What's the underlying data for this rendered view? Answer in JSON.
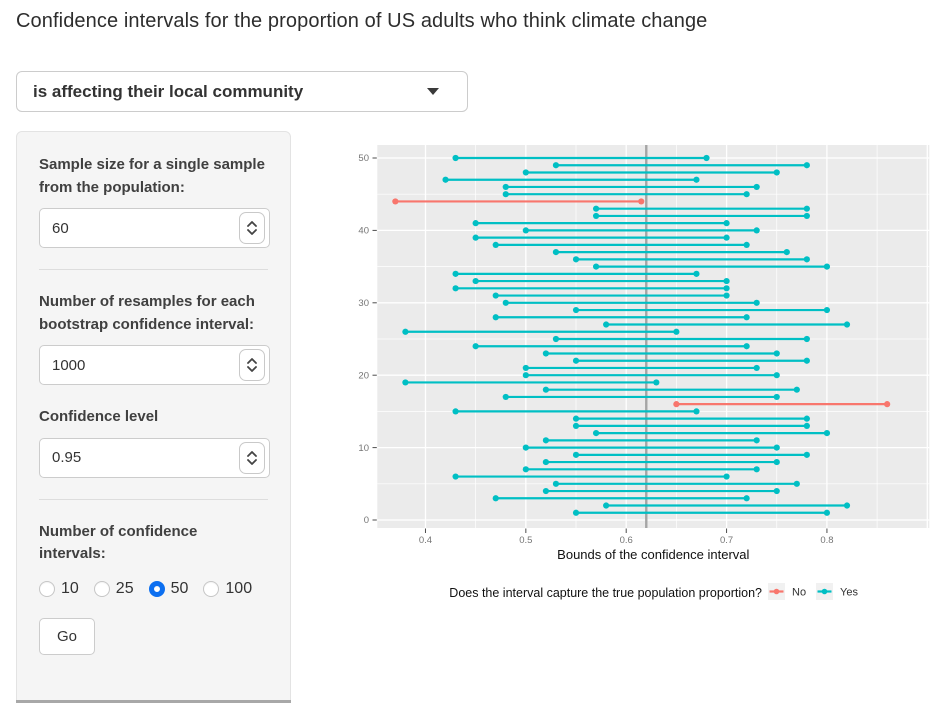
{
  "title": "Confidence intervals for the proportion of US adults who think climate change",
  "topic_select": {
    "value": "is affecting their local community"
  },
  "sidebar": {
    "sample_size_label": "Sample size for a single sample from the population:",
    "sample_size_value": "60",
    "resamples_label": "Number of resamples for each bootstrap confidence interval:",
    "resamples_value": "1000",
    "conf_level_label": "Confidence level",
    "conf_level_value": "0.95",
    "num_intervals_label": "Number of confidence intervals:",
    "num_intervals_options": [
      {
        "label": "10",
        "selected": false
      },
      {
        "label": "25",
        "selected": false
      },
      {
        "label": "50",
        "selected": true
      },
      {
        "label": "100",
        "selected": false
      }
    ],
    "go_label": "Go"
  },
  "chart_data": {
    "type": "scatter",
    "mark": "confidence-interval-segments",
    "title": "",
    "xlabel": "Bounds of the confidence interval",
    "ylabel": "",
    "xlim": [
      0.352,
      0.902
    ],
    "ylim": [
      -1.5,
      52
    ],
    "x_ticks": [
      0.4,
      0.5,
      0.6,
      0.7,
      0.8
    ],
    "x_gridlines": [
      0.4,
      0.5,
      0.6,
      0.7,
      0.8,
      0.9
    ],
    "x_minor_gridlines": [
      0.45,
      0.55,
      0.65,
      0.75,
      0.85
    ],
    "y_ticks": [
      0,
      10,
      20,
      30,
      40,
      50
    ],
    "y_minor_gridlines": [
      5,
      15,
      25,
      35,
      45
    ],
    "true_proportion_line": 0.62,
    "grid": true,
    "legend": {
      "position": "bottom",
      "title": "Does the interval capture the true population proportion?",
      "entries": [
        {
          "key": "no",
          "label": "No",
          "color": "#F8766D"
        },
        {
          "key": "yes",
          "label": "Yes",
          "color": "#00BFC4"
        }
      ]
    },
    "colors": {
      "panel": "#EBEBEB",
      "grid": "#FFFFFF",
      "vline": "#A5A5A5",
      "tick": "#4d4d4d",
      "axis_text": "#757575",
      "axis_title": "#111111",
      "key_bg": "#F1F1F1"
    },
    "intervals": [
      {
        "y": 1,
        "lo": 0.55,
        "hi": 0.8,
        "capture": "yes"
      },
      {
        "y": 2,
        "lo": 0.58,
        "hi": 0.82,
        "capture": "yes"
      },
      {
        "y": 3,
        "lo": 0.47,
        "hi": 0.72,
        "capture": "yes"
      },
      {
        "y": 4,
        "lo": 0.52,
        "hi": 0.75,
        "capture": "yes"
      },
      {
        "y": 5,
        "lo": 0.53,
        "hi": 0.77,
        "capture": "yes"
      },
      {
        "y": 6,
        "lo": 0.43,
        "hi": 0.7,
        "capture": "yes"
      },
      {
        "y": 7,
        "lo": 0.5,
        "hi": 0.73,
        "capture": "yes"
      },
      {
        "y": 8,
        "lo": 0.52,
        "hi": 0.75,
        "capture": "yes"
      },
      {
        "y": 9,
        "lo": 0.55,
        "hi": 0.78,
        "capture": "yes"
      },
      {
        "y": 10,
        "lo": 0.5,
        "hi": 0.75,
        "capture": "yes"
      },
      {
        "y": 11,
        "lo": 0.52,
        "hi": 0.73,
        "capture": "yes"
      },
      {
        "y": 12,
        "lo": 0.57,
        "hi": 0.8,
        "capture": "yes"
      },
      {
        "y": 13,
        "lo": 0.55,
        "hi": 0.78,
        "capture": "yes"
      },
      {
        "y": 14,
        "lo": 0.55,
        "hi": 0.78,
        "capture": "yes"
      },
      {
        "y": 15,
        "lo": 0.43,
        "hi": 0.67,
        "capture": "yes"
      },
      {
        "y": 16,
        "lo": 0.65,
        "hi": 0.86,
        "capture": "no"
      },
      {
        "y": 17,
        "lo": 0.48,
        "hi": 0.75,
        "capture": "yes"
      },
      {
        "y": 18,
        "lo": 0.52,
        "hi": 0.77,
        "capture": "yes"
      },
      {
        "y": 19,
        "lo": 0.38,
        "hi": 0.63,
        "capture": "yes"
      },
      {
        "y": 20,
        "lo": 0.5,
        "hi": 0.75,
        "capture": "yes"
      },
      {
        "y": 21,
        "lo": 0.5,
        "hi": 0.73,
        "capture": "yes"
      },
      {
        "y": 22,
        "lo": 0.55,
        "hi": 0.78,
        "capture": "yes"
      },
      {
        "y": 23,
        "lo": 0.52,
        "hi": 0.75,
        "capture": "yes"
      },
      {
        "y": 24,
        "lo": 0.45,
        "hi": 0.72,
        "capture": "yes"
      },
      {
        "y": 25,
        "lo": 0.53,
        "hi": 0.78,
        "capture": "yes"
      },
      {
        "y": 26,
        "lo": 0.38,
        "hi": 0.65,
        "capture": "yes"
      },
      {
        "y": 27,
        "lo": 0.58,
        "hi": 0.82,
        "capture": "yes"
      },
      {
        "y": 28,
        "lo": 0.47,
        "hi": 0.72,
        "capture": "yes"
      },
      {
        "y": 29,
        "lo": 0.55,
        "hi": 0.8,
        "capture": "yes"
      },
      {
        "y": 30,
        "lo": 0.48,
        "hi": 0.73,
        "capture": "yes"
      },
      {
        "y": 31,
        "lo": 0.47,
        "hi": 0.7,
        "capture": "yes"
      },
      {
        "y": 32,
        "lo": 0.43,
        "hi": 0.7,
        "capture": "yes"
      },
      {
        "y": 33,
        "lo": 0.45,
        "hi": 0.7,
        "capture": "yes"
      },
      {
        "y": 34,
        "lo": 0.43,
        "hi": 0.67,
        "capture": "yes"
      },
      {
        "y": 35,
        "lo": 0.57,
        "hi": 0.8,
        "capture": "yes"
      },
      {
        "y": 36,
        "lo": 0.55,
        "hi": 0.78,
        "capture": "yes"
      },
      {
        "y": 37,
        "lo": 0.53,
        "hi": 0.76,
        "capture": "yes"
      },
      {
        "y": 38,
        "lo": 0.47,
        "hi": 0.72,
        "capture": "yes"
      },
      {
        "y": 39,
        "lo": 0.45,
        "hi": 0.7,
        "capture": "yes"
      },
      {
        "y": 40,
        "lo": 0.5,
        "hi": 0.73,
        "capture": "yes"
      },
      {
        "y": 41,
        "lo": 0.45,
        "hi": 0.7,
        "capture": "yes"
      },
      {
        "y": 42,
        "lo": 0.57,
        "hi": 0.78,
        "capture": "yes"
      },
      {
        "y": 43,
        "lo": 0.57,
        "hi": 0.78,
        "capture": "yes"
      },
      {
        "y": 44,
        "lo": 0.37,
        "hi": 0.615,
        "capture": "no"
      },
      {
        "y": 45,
        "lo": 0.48,
        "hi": 0.72,
        "capture": "yes"
      },
      {
        "y": 46,
        "lo": 0.48,
        "hi": 0.73,
        "capture": "yes"
      },
      {
        "y": 47,
        "lo": 0.42,
        "hi": 0.67,
        "capture": "yes"
      },
      {
        "y": 48,
        "lo": 0.5,
        "hi": 0.75,
        "capture": "yes"
      },
      {
        "y": 49,
        "lo": 0.53,
        "hi": 0.78,
        "capture": "yes"
      },
      {
        "y": 50,
        "lo": 0.43,
        "hi": 0.68,
        "capture": "yes"
      }
    ]
  }
}
